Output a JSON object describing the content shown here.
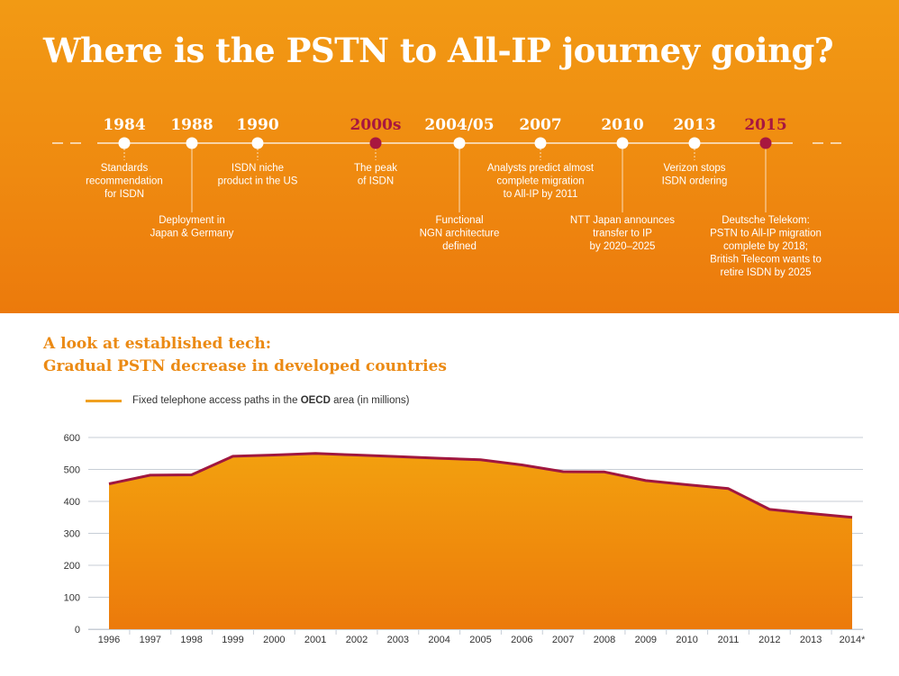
{
  "header": {
    "title": "Where is the PSTN to All-IP journey going?"
  },
  "timeline": {
    "colors": {
      "normal": "#ffffff",
      "highlight": "#a8173f"
    },
    "events": [
      {
        "year": "1984",
        "highlight": false,
        "text": [
          "Standards",
          "recommendation",
          "for ISDN"
        ]
      },
      {
        "year": "1988",
        "highlight": false,
        "text": [
          "Deployment in",
          "Japan & Germany"
        ]
      },
      {
        "year": "1990",
        "highlight": false,
        "text": [
          "ISDN niche",
          "product in the US"
        ]
      },
      {
        "year": "2000s",
        "highlight": true,
        "text": [
          "The peak",
          "of ISDN"
        ]
      },
      {
        "year": "2004/05",
        "highlight": false,
        "text": [
          "Functional",
          "NGN architecture",
          "defined"
        ]
      },
      {
        "year": "2007",
        "highlight": false,
        "text": [
          "Analysts predict almost",
          "complete migration",
          "to All-IP by 2011"
        ]
      },
      {
        "year": "2010",
        "highlight": false,
        "text": [
          "NTT Japan announces",
          "transfer to IP",
          "by 2020–2025"
        ]
      },
      {
        "year": "2013",
        "highlight": false,
        "text": [
          "Verizon stops",
          "ISDN ordering"
        ]
      },
      {
        "year": "2015",
        "highlight": true,
        "text": [
          "Deutsche Telekom:",
          "PSTN to All-IP migration",
          "complete by 2018;",
          "British Telecom wants to",
          "retire ISDN by 2025"
        ]
      }
    ]
  },
  "section": {
    "title_line1": "A look at established tech:",
    "title_line2": "Gradual PSTN decrease in developed countries"
  },
  "legend": {
    "label_before": "Fixed telephone access paths in the ",
    "label_bold": "OECD",
    "label_after": " area (in millions)"
  },
  "chart_data": {
    "type": "area",
    "categories": [
      "1996",
      "1997",
      "1998",
      "1999",
      "2000",
      "2001",
      "2002",
      "2003",
      "2004",
      "2005",
      "2006",
      "2007",
      "2008",
      "2009",
      "2010",
      "2011",
      "2012",
      "2013",
      "2014*"
    ],
    "series": [
      {
        "name": "Fixed telephone access paths in the OECD area (in millions)",
        "values": [
          455,
          482,
          483,
          541,
          545,
          550,
          545,
          540,
          535,
          530,
          514,
          493,
          492,
          465,
          452,
          440,
          375,
          362,
          350
        ]
      }
    ],
    "ylim": [
      0,
      600
    ],
    "yticks": [
      0,
      100,
      200,
      300,
      400,
      500,
      600
    ],
    "grid": true,
    "legend_position": "top-left",
    "colors": {
      "line": "#a0173f",
      "fill_top": "#f3a00e",
      "fill_bottom": "#ec7a0b",
      "grid": "#c7ced6"
    }
  }
}
